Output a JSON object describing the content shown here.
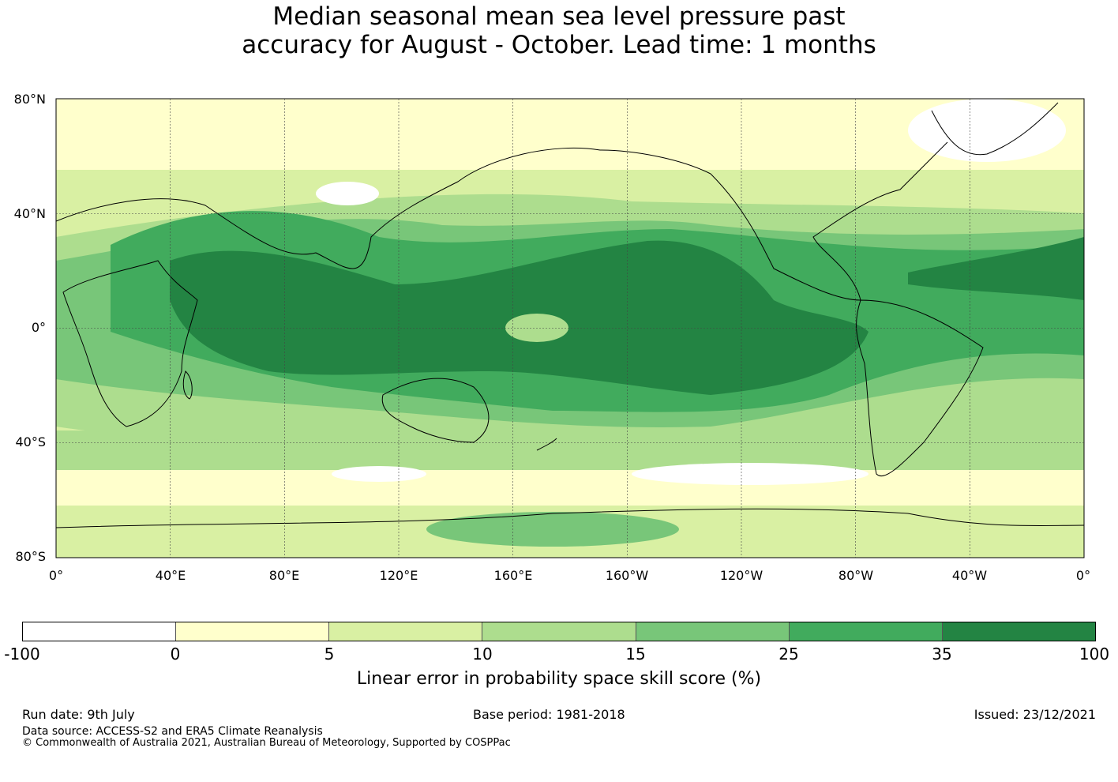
{
  "title": {
    "line1": "Median seasonal mean sea level pressure past",
    "line2": "accuracy for August - October. Lead time: 1 months"
  },
  "map": {
    "lat_labels": [
      "80°N",
      "40°N",
      "0°",
      "40°S",
      "80°S"
    ],
    "lon_labels": [
      "0°",
      "40°E",
      "80°E",
      "120°E",
      "160°E",
      "160°W",
      "120°W",
      "80°W",
      "40°W",
      "0°"
    ],
    "land_outline_color": "#000000",
    "grid": "on"
  },
  "colorbar": {
    "ticks": [
      "-100",
      "0",
      "5",
      "10",
      "15",
      "25",
      "35",
      "100"
    ],
    "colors": [
      "#ffffff",
      "#ffffcc",
      "#d9f0a3",
      "#addd8e",
      "#78c679",
      "#41ab5d",
      "#238443"
    ],
    "label": "Linear error in probability space skill score (%)"
  },
  "footer": {
    "run_date": "Run date: 9th July",
    "base_period": "Base period: 1981-2018",
    "issued": "Issued: 23/12/2021",
    "data_source": "Data source: ACCESS-S2 and ERA5 Climate Reanalysis",
    "copyright": "© Commonwealth of Australia 2021, Australian Bureau of Meteorology, Supported by COSPPac"
  }
}
